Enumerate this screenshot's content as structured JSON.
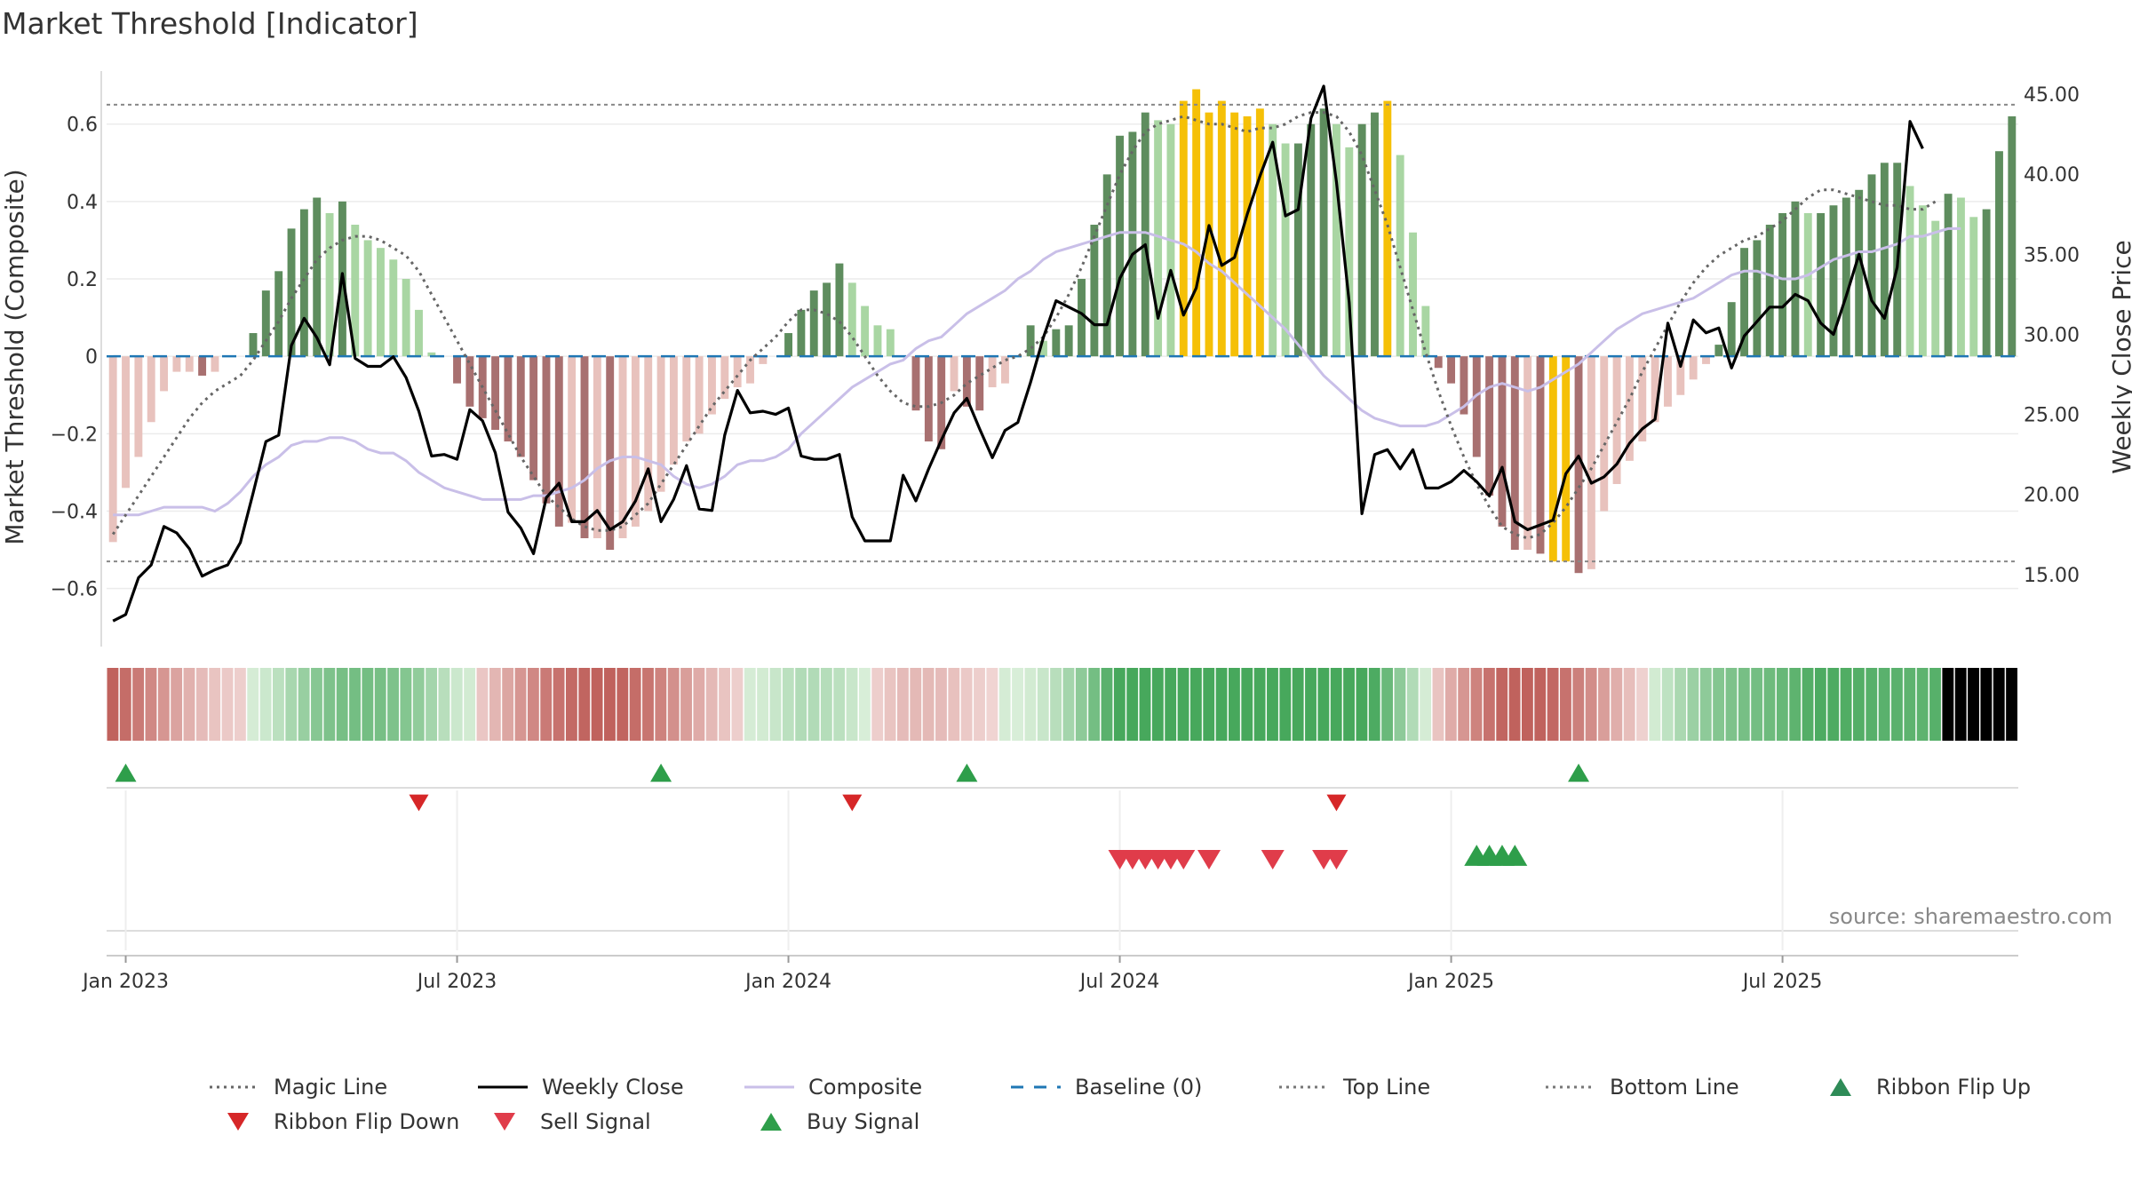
{
  "chart_data": {
    "type": "bar",
    "title": "Market Threshold [Indicator]",
    "ylabel": "Market Threshold (Composite)",
    "y2label": "Weekly Close Price",
    "ylim": [
      -0.75,
      0.76
    ],
    "y2lim": [
      10.5,
      47.0
    ],
    "yticks": [
      {
        "v": 0.6,
        "t": "0.6"
      },
      {
        "v": 0.4,
        "t": "0.4"
      },
      {
        "v": 0.2,
        "t": "0.2"
      },
      {
        "v": 0,
        "t": "0"
      },
      {
        "v": -0.2,
        "t": "−0.2"
      },
      {
        "v": -0.4,
        "t": "−0.4"
      },
      {
        "v": -0.6,
        "t": "−0.6"
      }
    ],
    "y2ticks": [
      {
        "v": 45,
        "t": "45.00"
      },
      {
        "v": 40,
        "t": "40.00"
      },
      {
        "v": 35,
        "t": "35.00"
      },
      {
        "v": 30,
        "t": "30.00"
      },
      {
        "v": 25,
        "t": "25.00"
      },
      {
        "v": 20,
        "t": "20.00"
      },
      {
        "v": 15,
        "t": "15.00"
      }
    ],
    "xticks": [
      {
        "w": 1,
        "t": "Jan 2023"
      },
      {
        "w": 27,
        "t": "Jul 2023"
      },
      {
        "w": 53,
        "t": "Jan 2024"
      },
      {
        "w": 79,
        "t": "Jul 2024"
      },
      {
        "w": 105,
        "t": "Jan 2025"
      },
      {
        "w": 131,
        "t": "Jul 2025"
      }
    ],
    "top_line": 0.65,
    "bottom_line": -0.53,
    "baseline": 0,
    "composite_bars": [
      -0.48,
      -0.34,
      -0.26,
      -0.17,
      -0.09,
      -0.04,
      -0.04,
      -0.05,
      -0.04,
      0,
      0,
      0.06,
      0.17,
      0.22,
      0.33,
      0.38,
      0.41,
      0.37,
      0.4,
      0.34,
      0.3,
      0.28,
      0.25,
      0.2,
      0.12,
      0.01,
      0,
      -0.07,
      -0.13,
      -0.16,
      -0.19,
      -0.22,
      -0.26,
      -0.32,
      -0.38,
      -0.44,
      -0.43,
      -0.47,
      -0.47,
      -0.5,
      -0.47,
      -0.44,
      -0.4,
      -0.35,
      -0.28,
      -0.22,
      -0.2,
      -0.15,
      -0.11,
      -0.08,
      -0.07,
      -0.02,
      0,
      0.06,
      0.12,
      0.17,
      0.19,
      0.24,
      0.19,
      0.13,
      0.08,
      0.07,
      0,
      -0.14,
      -0.22,
      -0.24,
      -0.09,
      -0.13,
      -0.14,
      -0.08,
      -0.07,
      0,
      0.08,
      0.04,
      0.07,
      0.08,
      0.2,
      0.34,
      0.47,
      0.57,
      0.58,
      0.63,
      0.61,
      0.6,
      0.66,
      0.69,
      0.63,
      0.66,
      0.63,
      0.62,
      0.64,
      0.6,
      0.55,
      0.55,
      0.6,
      0.64,
      0.6,
      0.54,
      0.6,
      0.63,
      0.66,
      0.52,
      0.32,
      0.13,
      -0.03,
      -0.07,
      -0.15,
      -0.26,
      -0.36,
      -0.44,
      -0.5,
      -0.5,
      -0.51,
      -0.53,
      -0.53,
      -0.56,
      -0.55,
      -0.4,
      -0.33,
      -0.27,
      -0.22,
      -0.17,
      -0.13,
      -0.1,
      -0.06,
      -0.02,
      0.03,
      0.14,
      0.28,
      0.3,
      0.34,
      0.37,
      0.4,
      0.37,
      0.37,
      0.39,
      0.41,
      0.43,
      0.47,
      0.5,
      0.5,
      0.44,
      0.39,
      0.35,
      0.42,
      0.41,
      0.36,
      0.38,
      0.53,
      0.62
    ],
    "weekly_close": [
      12.1,
      12.5,
      14.8,
      15.6,
      18.0,
      17.6,
      16.6,
      14.9,
      15.3,
      15.6,
      17.0,
      20.1,
      23.3,
      23.7,
      29.3,
      31.0,
      29.8,
      28.1,
      33.8,
      28.5,
      28.0,
      28.0,
      28.6,
      27.3,
      25.2,
      22.4,
      22.5,
      22.2,
      25.3,
      24.6,
      22.6,
      18.9,
      17.9,
      16.3,
      19.8,
      20.7,
      18.3,
      18.3,
      19.0,
      17.8,
      18.3,
      19.6,
      21.6,
      18.3,
      19.7,
      21.8,
      19.1,
      19.0,
      23.7,
      26.5,
      25.1,
      25.2,
      25.0,
      25.4,
      22.4,
      22.2,
      22.2,
      22.5,
      18.6,
      17.1,
      17.1,
      17.1,
      21.2,
      19.6,
      21.6,
      23.4,
      25.1,
      26.0,
      24.1,
      22.3,
      24.0,
      24.5,
      27.0,
      29.8,
      32.1,
      31.7,
      31.3,
      30.6,
      30.6,
      33.5,
      35.0,
      35.6,
      31.0,
      34.0,
      31.2,
      32.9,
      36.8,
      34.3,
      34.8,
      37.5,
      39.9,
      42.0,
      37.4,
      37.8,
      43.5,
      45.5,
      39.5,
      32.0,
      18.8,
      22.5,
      22.8,
      21.6,
      22.8,
      20.4,
      20.4,
      20.8,
      21.5,
      20.8,
      19.9,
      21.7,
      18.3,
      17.8,
      18.1,
      18.4,
      21.3,
      22.4,
      20.7,
      21.1,
      21.9,
      23.2,
      24.1,
      24.7,
      30.7,
      28.0,
      30.9,
      30.1,
      30.4,
      27.9,
      29.9,
      30.8,
      31.7,
      31.7,
      32.5,
      32.1,
      30.7,
      30.0,
      32.4,
      35.0,
      32.1,
      31.0,
      34.2,
      43.3,
      41.6
    ],
    "magic_line": [
      -0.46,
      -0.41,
      -0.36,
      -0.31,
      -0.26,
      -0.21,
      -0.16,
      -0.12,
      -0.09,
      -0.07,
      -0.05,
      -0.01,
      0.04,
      0.09,
      0.15,
      0.2,
      0.25,
      0.28,
      0.3,
      0.31,
      0.31,
      0.3,
      0.28,
      0.26,
      0.22,
      0.16,
      0.1,
      0.04,
      -0.02,
      -0.08,
      -0.14,
      -0.2,
      -0.26,
      -0.31,
      -0.36,
      -0.39,
      -0.42,
      -0.44,
      -0.45,
      -0.45,
      -0.44,
      -0.41,
      -0.38,
      -0.33,
      -0.28,
      -0.23,
      -0.18,
      -0.13,
      -0.09,
      -0.05,
      -0.01,
      0.02,
      0.05,
      0.09,
      0.12,
      0.12,
      0.11,
      0.09,
      0.05,
      0,
      -0.05,
      -0.09,
      -0.12,
      -0.13,
      -0.13,
      -0.12,
      -0.1,
      -0.07,
      -0.05,
      -0.03,
      -0.01,
      0,
      0.02,
      0.05,
      0.1,
      0.16,
      0.23,
      0.31,
      0.39,
      0.47,
      0.53,
      0.58,
      0.6,
      0.61,
      0.62,
      0.61,
      0.6,
      0.6,
      0.59,
      0.58,
      0.59,
      0.59,
      0.6,
      0.62,
      0.63,
      0.63,
      0.62,
      0.58,
      0.52,
      0.43,
      0.34,
      0.23,
      0.12,
      0.01,
      -0.09,
      -0.18,
      -0.26,
      -0.33,
      -0.39,
      -0.44,
      -0.46,
      -0.47,
      -0.46,
      -0.43,
      -0.39,
      -0.34,
      -0.29,
      -0.23,
      -0.17,
      -0.11,
      -0.04,
      0.02,
      0.08,
      0.14,
      0.19,
      0.23,
      0.26,
      0.28,
      0.3,
      0.31,
      0.33,
      0.35,
      0.38,
      0.41,
      0.43,
      0.43,
      0.42,
      0.41,
      0.4,
      0.39,
      0.39,
      0.38,
      0.38,
      0.4
    ],
    "composite_line": [
      -0.41,
      -0.41,
      -0.41,
      -0.4,
      -0.39,
      -0.39,
      -0.39,
      -0.39,
      -0.4,
      -0.38,
      -0.35,
      -0.31,
      -0.28,
      -0.26,
      -0.23,
      -0.22,
      -0.22,
      -0.21,
      -0.21,
      -0.22,
      -0.24,
      -0.25,
      -0.25,
      -0.27,
      -0.3,
      -0.32,
      -0.34,
      -0.35,
      -0.36,
      -0.37,
      -0.37,
      -0.37,
      -0.37,
      -0.36,
      -0.36,
      -0.35,
      -0.34,
      -0.32,
      -0.29,
      -0.27,
      -0.26,
      -0.26,
      -0.27,
      -0.28,
      -0.31,
      -0.33,
      -0.34,
      -0.33,
      -0.31,
      -0.28,
      -0.27,
      -0.27,
      -0.26,
      -0.24,
      -0.2,
      -0.17,
      -0.14,
      -0.11,
      -0.08,
      -0.06,
      -0.04,
      -0.02,
      -0.01,
      0.02,
      0.04,
      0.05,
      0.08,
      0.11,
      0.13,
      0.15,
      0.17,
      0.2,
      0.22,
      0.25,
      0.27,
      0.28,
      0.29,
      0.3,
      0.31,
      0.32,
      0.32,
      0.32,
      0.31,
      0.3,
      0.29,
      0.27,
      0.24,
      0.22,
      0.19,
      0.16,
      0.13,
      0.1,
      0.07,
      0.03,
      -0.01,
      -0.05,
      -0.08,
      -0.11,
      -0.14,
      -0.16,
      -0.17,
      -0.18,
      -0.18,
      -0.18,
      -0.17,
      -0.15,
      -0.13,
      -0.1,
      -0.08,
      -0.07,
      -0.08,
      -0.09,
      -0.08,
      -0.06,
      -0.04,
      -0.02,
      0.01,
      0.04,
      0.07,
      0.09,
      0.11,
      0.12,
      0.13,
      0.14,
      0.15,
      0.17,
      0.19,
      0.21,
      0.22,
      0.22,
      0.21,
      0.2,
      0.2,
      0.21,
      0.23,
      0.25,
      0.26,
      0.27,
      0.27,
      0.28,
      0.29,
      0.31,
      0.31,
      0.32,
      0.33,
      0.33
    ],
    "ribbon_flip_up": [
      1,
      43,
      67,
      115
    ],
    "ribbon_flip_down": [
      24,
      58,
      96
    ],
    "sell_signals": [
      79,
      80,
      81,
      82,
      83,
      84,
      86,
      91,
      95,
      96
    ],
    "buy_signals": [
      107,
      108,
      109,
      110
    ],
    "legend": [
      {
        "name": "Magic Line",
        "kind": "dotted-line",
        "color": "#666666"
      },
      {
        "name": "Weekly Close",
        "kind": "line",
        "color": "#000000"
      },
      {
        "name": "Composite",
        "kind": "line",
        "color": "#c9bfe8"
      },
      {
        "name": "Baseline (0)",
        "kind": "dashed-line",
        "color": "#1f77b4"
      },
      {
        "name": "Top Line",
        "kind": "dotted-line",
        "color": "#777777"
      },
      {
        "name": "Bottom Line",
        "kind": "dotted-line",
        "color": "#777777"
      },
      {
        "name": "Ribbon Flip Up",
        "kind": "triangle-up",
        "color": "#2e8b57"
      },
      {
        "name": "Ribbon Flip Down",
        "kind": "triangle-down",
        "color": "#d62728"
      },
      {
        "name": "Sell Signal",
        "kind": "triangle-down",
        "color": "#e03c4a"
      },
      {
        "name": "Buy Signal",
        "kind": "triangle-up",
        "color": "#2e9e4a"
      }
    ],
    "colors": {
      "bar_strong_green": "#5e8d5e",
      "bar_light_green": "#a9d6a3",
      "bar_strong_red": "#a87070",
      "bar_light_red": "#e8c2bd",
      "bar_extreme": "#f5c007",
      "ribbon_green_dark": "#4fae63",
      "ribbon_green_light": "#d2ebd2",
      "ribbon_red_dark": "#c46a66",
      "ribbon_red_light": "#f1d6d4"
    }
  },
  "source_note": "source: sharemaestro.com"
}
